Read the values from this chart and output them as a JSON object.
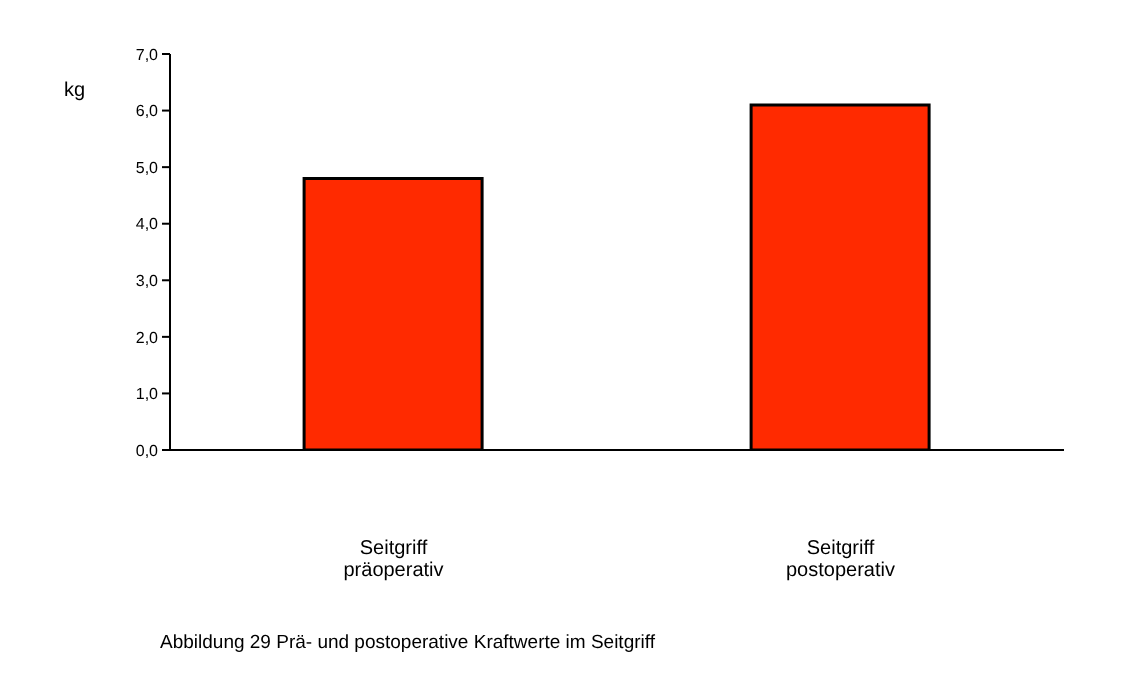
{
  "chart_data": {
    "type": "bar",
    "ylabel": "kg",
    "categories": [
      "Seitgriff\npräoperativ",
      "Seitgriff\npostoperativ"
    ],
    "values": [
      4.8,
      6.1
    ],
    "color": "#ff2a00",
    "ylim": [
      0,
      7
    ],
    "yticks": [
      {
        "value": 0,
        "label": "0,0"
      },
      {
        "value": 1,
        "label": "1,0"
      },
      {
        "value": 2,
        "label": "2,0"
      },
      {
        "value": 3,
        "label": "3,0"
      },
      {
        "value": 4,
        "label": "4,0"
      },
      {
        "value": 5,
        "label": "5,0"
      },
      {
        "value": 6,
        "label": "6,0"
      },
      {
        "value": 7,
        "label": "7,0"
      }
    ],
    "grid": false,
    "legend": false,
    "annotations": [
      "Abbildung 29 Prä- und postoperative Kraftwerte im Seitgriff"
    ]
  }
}
